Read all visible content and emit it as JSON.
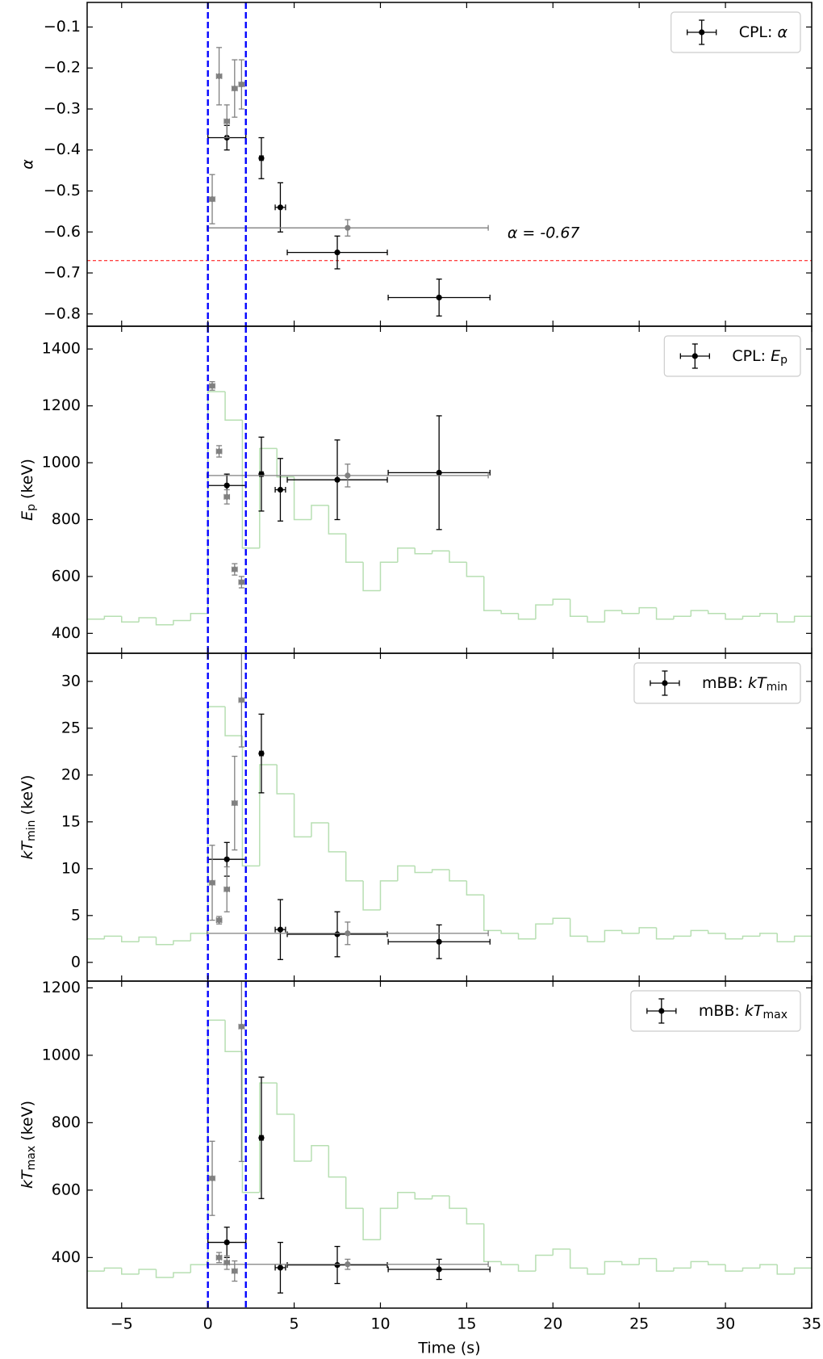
{
  "chart_data": [
    {
      "type": "errorbar",
      "xlim": [
        -7,
        35
      ],
      "ylim": [
        -0.83,
        -0.04
      ],
      "yticks": [
        {
          "value": -0.8,
          "label": "−0.8"
        },
        {
          "value": -0.7,
          "label": "−0.7"
        },
        {
          "value": -0.6,
          "label": "−0.6"
        },
        {
          "value": -0.5,
          "label": "−0.5"
        },
        {
          "value": -0.4,
          "label": "−0.4"
        },
        {
          "value": -0.3,
          "label": "−0.3"
        },
        {
          "value": -0.2,
          "label": "−0.2"
        },
        {
          "value": -0.1,
          "label": "−0.1"
        }
      ],
      "ylabel": {
        "main": "α"
      },
      "legend": {
        "prefix": "CPL: ",
        "main": "α"
      },
      "vlines": {
        "color": "#0000ff",
        "values": [
          0,
          2.2
        ]
      },
      "hline": {
        "value": -0.67,
        "color": "#ff0000",
        "label": "α = -0.67"
      },
      "series": [
        {
          "color": "#000000",
          "x": [
            1.1,
            3.1,
            4.2,
            7.5,
            13.4
          ],
          "xerr": [
            1.1,
            0.1,
            0.3,
            2.9,
            2.95
          ],
          "values": [
            -0.37,
            -0.42,
            -0.54,
            -0.65,
            -0.76
          ],
          "yerr": [
            0.03,
            0.05,
            0.06,
            0.04,
            0.045
          ]
        },
        {
          "color": "#808080",
          "x": [
            0.25,
            0.65,
            1.1,
            1.55,
            1.95,
            8.1
          ],
          "xerr": [
            0.15,
            0.15,
            0.15,
            0.15,
            0.15,
            8.15
          ],
          "values": [
            -0.52,
            -0.22,
            -0.33,
            -0.25,
            -0.24,
            -0.59
          ],
          "yerr": [
            0.06,
            0.07,
            0.04,
            0.07,
            0.06,
            0.02
          ]
        }
      ]
    },
    {
      "type": "errorbar",
      "xlim": [
        -7,
        35
      ],
      "ylim": [
        330,
        1480
      ],
      "yticks": [
        400,
        600,
        800,
        1000,
        1200,
        1400
      ],
      "ylabel": {
        "main": "E",
        "sub": "p",
        "unit": " (keV)"
      },
      "legend": {
        "prefix": "CPL: ",
        "main": "E",
        "sub": "p"
      },
      "vlines": {
        "color": "#0000ff",
        "values": [
          0,
          2.2
        ]
      },
      "lightcurve": {
        "color": "#b7dfb2",
        "bins": [
          -7,
          -6,
          -5,
          -4,
          -3,
          -2,
          -1,
          0,
          1,
          2,
          3,
          4,
          5,
          6,
          7,
          8,
          9,
          10,
          11,
          12,
          13,
          14,
          15,
          16,
          17,
          18,
          19,
          20,
          21,
          22,
          23,
          24,
          25,
          26,
          27,
          28,
          29,
          30,
          31,
          32,
          33,
          34,
          35
        ],
        "values": [
          450,
          460,
          440,
          455,
          430,
          445,
          470,
          1250,
          1150,
          700,
          1050,
          950,
          800,
          850,
          750,
          650,
          550,
          650,
          700,
          680,
          690,
          650,
          600,
          480,
          470,
          450,
          500,
          520,
          460,
          440,
          480,
          470,
          490,
          450,
          460,
          480,
          470,
          450,
          460,
          470,
          440,
          460
        ]
      },
      "series": [
        {
          "color": "#000000",
          "x": [
            1.1,
            3.1,
            4.2,
            7.5,
            13.4
          ],
          "xerr": [
            1.1,
            0.1,
            0.3,
            2.9,
            2.95
          ],
          "values": [
            920,
            960,
            905,
            940,
            965
          ],
          "yerr": [
            40,
            130,
            110,
            140,
            200
          ]
        },
        {
          "color": "#808080",
          "x": [
            0.25,
            0.65,
            1.1,
            1.55,
            1.95,
            8.1
          ],
          "xerr": [
            0.15,
            0.15,
            0.15,
            0.15,
            0.15,
            8.15
          ],
          "values": [
            1270,
            1040,
            880,
            625,
            580,
            955
          ],
          "yerr": [
            15,
            20,
            25,
            20,
            20,
            40
          ]
        }
      ]
    },
    {
      "type": "errorbar",
      "xlim": [
        -7,
        35
      ],
      "ylim": [
        -2,
        33
      ],
      "yticks": [
        0,
        5,
        10,
        15,
        20,
        25,
        30
      ],
      "ylabel": {
        "main": "kT",
        "sub": "min",
        "unit": " (keV)"
      },
      "legend": {
        "prefix": "mBB: ",
        "main": "kT",
        "sub": "min"
      },
      "vlines": {
        "color": "#0000ff",
        "values": [
          0,
          2.2
        ]
      },
      "lightcurve": {
        "color": "#b7dfb2",
        "bins": [
          -7,
          -6,
          -5,
          -4,
          -3,
          -2,
          -1,
          0,
          1,
          2,
          3,
          4,
          5,
          6,
          7,
          8,
          9,
          10,
          11,
          12,
          13,
          14,
          15,
          16,
          17,
          18,
          19,
          20,
          21,
          22,
          23,
          24,
          25,
          26,
          27,
          28,
          29,
          30,
          31,
          32,
          33,
          34,
          35
        ],
        "values": [
          2.5,
          2.8,
          2.2,
          2.7,
          1.9,
          2.3,
          3.1,
          27.3,
          24.2,
          10.3,
          21.1,
          18.0,
          13.4,
          14.9,
          11.8,
          8.7,
          5.6,
          8.7,
          10.3,
          9.6,
          9.9,
          8.7,
          7.2,
          3.4,
          3.1,
          2.5,
          4.1,
          4.7,
          2.8,
          2.2,
          3.4,
          3.1,
          3.7,
          2.5,
          2.8,
          3.4,
          3.1,
          2.5,
          2.8,
          3.1,
          2.2,
          2.8
        ]
      },
      "series": [
        {
          "color": "#000000",
          "x": [
            1.1,
            3.1,
            4.2,
            7.5,
            13.4
          ],
          "xerr": [
            1.1,
            0.1,
            0.3,
            2.9,
            2.95
          ],
          "values": [
            11,
            22.3,
            3.5,
            3.0,
            2.2
          ],
          "yerr": [
            1.8,
            4.2,
            3.2,
            2.4,
            1.8
          ]
        },
        {
          "color": "#808080",
          "x": [
            0.25,
            0.65,
            1.1,
            1.55,
            1.95,
            8.1
          ],
          "xerr": [
            0.15,
            0.15,
            0.15,
            0.15,
            0.15,
            8.15
          ],
          "values": [
            8.5,
            4.5,
            7.8,
            17,
            28,
            3.1
          ],
          "yerr": [
            4,
            0.4,
            2.4,
            5,
            5,
            1.2
          ]
        }
      ]
    },
    {
      "type": "errorbar",
      "xlim": [
        -7,
        35
      ],
      "ylim": [
        250,
        1220
      ],
      "yticks": [
        400,
        600,
        800,
        1000,
        1200
      ],
      "xticks": [
        {
          "value": -5,
          "label": "−5"
        },
        0,
        5,
        10,
        15,
        20,
        25,
        30,
        35
      ],
      "xlabel": "Time (s)",
      "ylabel": {
        "main": "kT",
        "sub": "max",
        "unit": " (keV)"
      },
      "legend": {
        "prefix": "mBB: ",
        "main": "kT",
        "sub": "max"
      },
      "vlines": {
        "color": "#0000ff",
        "values": [
          0,
          2.2
        ]
      },
      "lightcurve": {
        "color": "#b7dfb2",
        "bins": [
          -7,
          -6,
          -5,
          -4,
          -3,
          -2,
          -1,
          0,
          1,
          2,
          3,
          4,
          5,
          6,
          7,
          8,
          9,
          10,
          11,
          12,
          13,
          14,
          15,
          16,
          17,
          18,
          19,
          20,
          21,
          22,
          23,
          24,
          25,
          26,
          27,
          28,
          29,
          30,
          31,
          32,
          33,
          34,
          35
        ],
        "values": [
          360,
          369,
          351,
          365,
          341,
          355,
          379,
          1104,
          1011,
          593,
          918,
          825,
          686,
          732,
          639,
          546,
          453,
          546,
          593,
          574,
          583,
          546,
          500,
          388,
          379,
          360,
          407,
          425,
          369,
          351,
          388,
          379,
          397,
          360,
          369,
          388,
          379,
          360,
          369,
          379,
          351,
          369
        ]
      },
      "series": [
        {
          "color": "#000000",
          "x": [
            1.1,
            3.1,
            4.2,
            7.5,
            13.4
          ],
          "xerr": [
            1.1,
            0.1,
            0.3,
            2.9,
            2.95
          ],
          "values": [
            445,
            755,
            370,
            378,
            365
          ],
          "yerr": [
            45,
            180,
            75,
            55,
            30
          ]
        },
        {
          "color": "#808080",
          "x": [
            0.25,
            0.65,
            1.1,
            1.55,
            1.95,
            8.1
          ],
          "xerr": [
            0.15,
            0.15,
            0.15,
            0.15,
            0.15,
            8.15
          ],
          "values": [
            635,
            400,
            385,
            360,
            1085,
            380
          ],
          "yerr": [
            110,
            15,
            20,
            30,
            400,
            15
          ]
        }
      ]
    }
  ]
}
